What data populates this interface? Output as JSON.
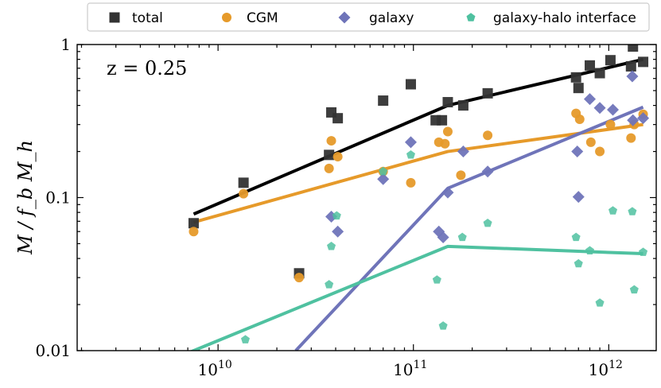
{
  "chart_data": {
    "type": "scatter",
    "title": "",
    "annotation": "z = 0.25",
    "xlabel": "",
    "ylabel": "M / f_b M_h",
    "xscale": "log",
    "yscale": "log",
    "xlim": [
      1900000000.0,
      1750000000000.0
    ],
    "ylim": [
      0.01,
      1
    ],
    "x_ticks": [
      {
        "value": 10000000000.0,
        "label": "10",
        "exp": "10"
      },
      {
        "value": 100000000000.0,
        "label": "10",
        "exp": "11"
      },
      {
        "value": 1000000000000.0,
        "label": "10",
        "exp": "12"
      }
    ],
    "y_ticks": [
      {
        "value": 0.01,
        "label": "0.01"
      },
      {
        "value": 0.1,
        "label": "0.1"
      },
      {
        "value": 1,
        "label": "1"
      }
    ],
    "legend_position": "top",
    "series": [
      {
        "name": "total",
        "color": "#333333",
        "marker": "square",
        "points": [
          [
            7500000000.0,
            0.068
          ],
          [
            13500000000.0,
            0.125
          ],
          [
            26000000000.0,
            0.032
          ],
          [
            37000000000.0,
            0.19
          ],
          [
            38000000000.0,
            0.36
          ],
          [
            41000000000.0,
            0.33
          ],
          [
            70000000000.0,
            0.43
          ],
          [
            97000000000.0,
            0.55
          ],
          [
            130000000000.0,
            0.32
          ],
          [
            140000000000.0,
            0.32
          ],
          [
            150000000000.0,
            0.42
          ],
          [
            180000000000.0,
            0.4
          ],
          [
            240000000000.0,
            0.48
          ],
          [
            680000000000.0,
            0.61
          ],
          [
            700000000000.0,
            0.52
          ],
          [
            800000000000.0,
            0.73
          ],
          [
            900000000000.0,
            0.65
          ],
          [
            1020000000000.0,
            0.79
          ],
          [
            1300000000000.0,
            0.72
          ],
          [
            1330000000000.0,
            0.97
          ],
          [
            1500000000000.0,
            0.77
          ]
        ],
        "fit": [
          [
            7500000000.0,
            0.078
          ],
          [
            150000000000.0,
            0.4
          ],
          [
            1500000000000.0,
            0.8
          ]
        ]
      },
      {
        "name": "CGM",
        "color": "#e69a2a",
        "marker": "circle",
        "points": [
          [
            7500000000.0,
            0.06
          ],
          [
            13500000000.0,
            0.106
          ],
          [
            26000000000.0,
            0.03
          ],
          [
            37000000000.0,
            0.155
          ],
          [
            38000000000.0,
            0.235
          ],
          [
            41000000000.0,
            0.185
          ],
          [
            70000000000.0,
            0.148
          ],
          [
            97000000000.0,
            0.125
          ],
          [
            135000000000.0,
            0.23
          ],
          [
            145000000000.0,
            0.225
          ],
          [
            150000000000.0,
            0.27
          ],
          [
            175000000000.0,
            0.14
          ],
          [
            240000000000.0,
            0.255
          ],
          [
            680000000000.0,
            0.355
          ],
          [
            710000000000.0,
            0.325
          ],
          [
            810000000000.0,
            0.23
          ],
          [
            900000000000.0,
            0.2
          ],
          [
            1020000000000.0,
            0.3
          ],
          [
            1300000000000.0,
            0.245
          ],
          [
            1350000000000.0,
            0.3
          ],
          [
            1500000000000.0,
            0.35
          ]
        ],
        "fit": [
          [
            7500000000.0,
            0.069
          ],
          [
            150000000000.0,
            0.2
          ],
          [
            1500000000000.0,
            0.3
          ]
        ]
      },
      {
        "name": "galaxy",
        "color": "#6f74b9",
        "marker": "diamond",
        "points": [
          [
            38000000000.0,
            0.075
          ],
          [
            41000000000.0,
            0.06
          ],
          [
            70000000000.0,
            0.132
          ],
          [
            97000000000.0,
            0.23
          ],
          [
            135000000000.0,
            0.06
          ],
          [
            142000000000.0,
            0.055
          ],
          [
            150000000000.0,
            0.108
          ],
          [
            180000000000.0,
            0.2
          ],
          [
            240000000000.0,
            0.148
          ],
          [
            690000000000.0,
            0.2
          ],
          [
            700000000000.0,
            0.101
          ],
          [
            800000000000.0,
            0.44
          ],
          [
            900000000000.0,
            0.385
          ],
          [
            1050000000000.0,
            0.375
          ],
          [
            1320000000000.0,
            0.62
          ],
          [
            1330000000000.0,
            0.32
          ],
          [
            1500000000000.0,
            0.33
          ]
        ],
        "fit": [
          [
            25000000000.0,
            0.01
          ],
          [
            150000000000.0,
            0.115
          ],
          [
            1500000000000.0,
            0.39
          ]
        ]
      },
      {
        "name": "galaxy-halo interface",
        "color": "#4fc1a0",
        "marker": "pentagon",
        "points": [
          [
            13800000000.0,
            0.0118
          ],
          [
            37000000000.0,
            0.027
          ],
          [
            38000000000.0,
            0.048
          ],
          [
            40500000000.0,
            0.076
          ],
          [
            70000000000.0,
            0.148
          ],
          [
            97000000000.0,
            0.19
          ],
          [
            132000000000.0,
            0.029
          ],
          [
            142000000000.0,
            0.0145
          ],
          [
            178000000000.0,
            0.055
          ],
          [
            240000000000.0,
            0.068
          ],
          [
            680000000000.0,
            0.055
          ],
          [
            700000000000.0,
            0.037
          ],
          [
            800000000000.0,
            0.045
          ],
          [
            900000000000.0,
            0.0205
          ],
          [
            1050000000000.0,
            0.082
          ],
          [
            1320000000000.0,
            0.081
          ],
          [
            1350000000000.0,
            0.025
          ],
          [
            1500000000000.0,
            0.044
          ]
        ],
        "fit": [
          [
            6800000000.0,
            0.0095
          ],
          [
            150000000000.0,
            0.048
          ],
          [
            1500000000000.0,
            0.043
          ]
        ]
      }
    ]
  }
}
